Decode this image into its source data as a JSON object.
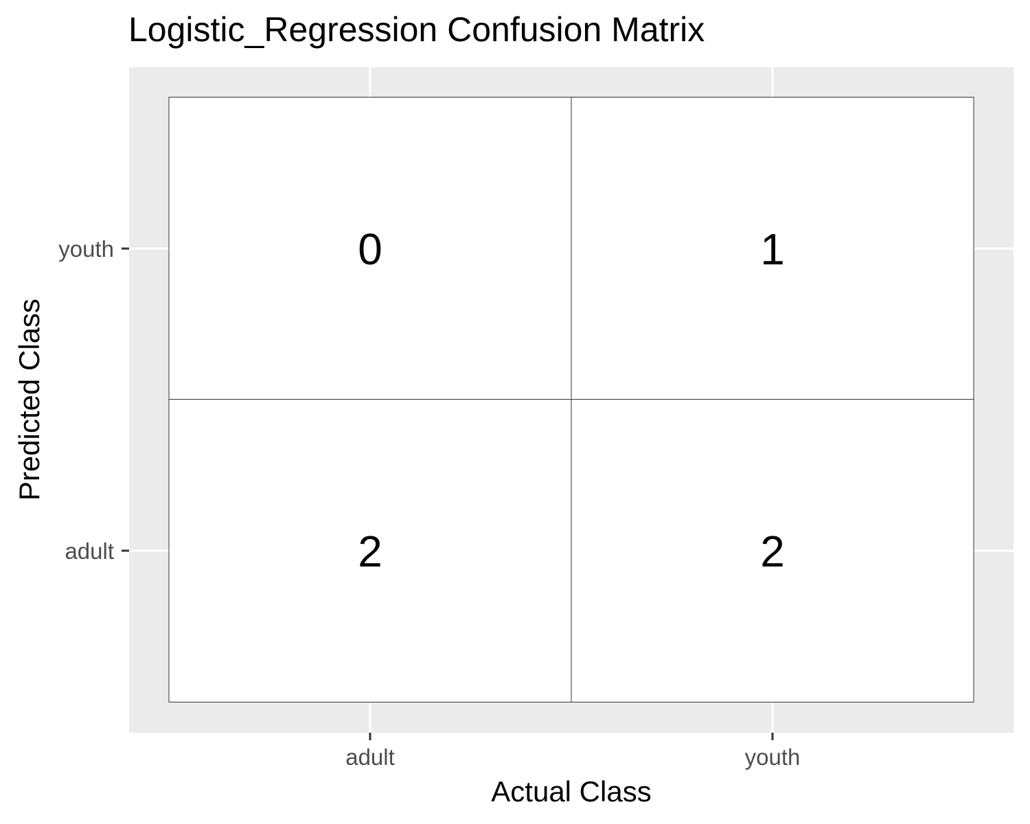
{
  "chart_data": {
    "type": "heatmap",
    "title": "Logistic_Regression Confusion Matrix",
    "xlabel": "Actual Class",
    "ylabel": "Predicted Class",
    "x_categories": [
      "adult",
      "youth"
    ],
    "y_categories": [
      "adult",
      "youth"
    ],
    "cells": [
      {
        "actual": "adult",
        "predicted": "youth",
        "value": 0
      },
      {
        "actual": "youth",
        "predicted": "youth",
        "value": 1
      },
      {
        "actual": "adult",
        "predicted": "adult",
        "value": 2
      },
      {
        "actual": "youth",
        "predicted": "adult",
        "value": 2
      }
    ],
    "grid": true,
    "colors": {
      "panel_background": "#ebebeb",
      "gridline": "#ffffff",
      "tile_fill": "#ffffff",
      "tile_border": "#333333",
      "tick_label": "#4d4d4d",
      "text": "#000000"
    }
  }
}
